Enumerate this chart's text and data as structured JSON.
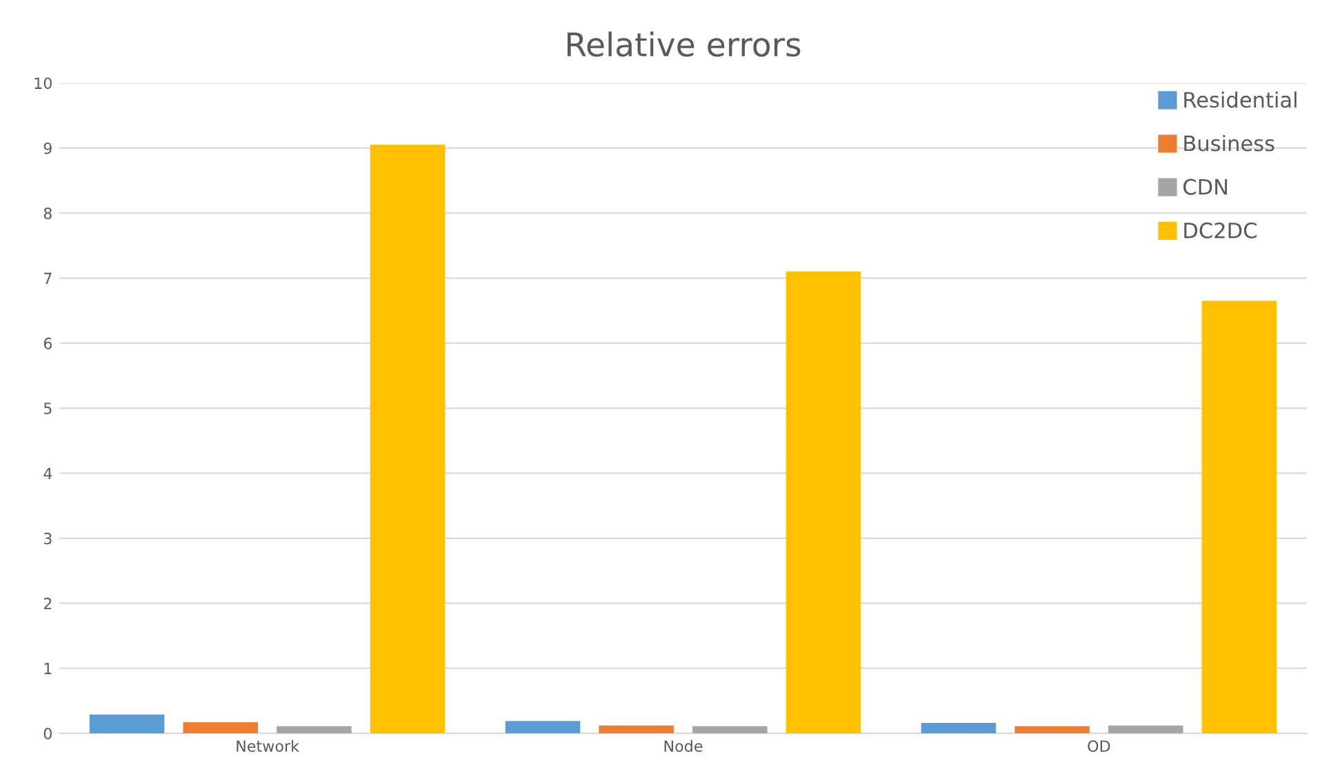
{
  "chart_data": {
    "type": "bar",
    "title": "Relative errors",
    "categories": [
      "Network",
      "Node",
      "OD"
    ],
    "series": [
      {
        "name": "Residential",
        "color": "#5b9bd5",
        "values": [
          0.29,
          0.19,
          0.16
        ]
      },
      {
        "name": "Business",
        "color": "#ed7d31",
        "values": [
          0.17,
          0.12,
          0.11
        ]
      },
      {
        "name": "CDN",
        "color": "#a5a5a5",
        "values": [
          0.11,
          0.11,
          0.12
        ]
      },
      {
        "name": "DC2DC",
        "color": "#ffc000",
        "values": [
          9.05,
          7.1,
          6.65
        ]
      }
    ],
    "ylim": [
      0,
      10
    ],
    "yticks": [
      0,
      1,
      2,
      3,
      4,
      5,
      6,
      7,
      8,
      9,
      10
    ],
    "grid": "y",
    "legend": "top right"
  }
}
